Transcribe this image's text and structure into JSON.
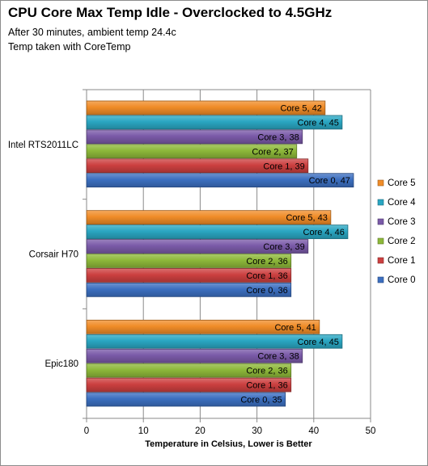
{
  "chart_data": {
    "type": "bar",
    "orientation": "horizontal",
    "title": "CPU Core Max Temp Idle - Overclocked to 4.5GHz",
    "subtitle": [
      "After 30 minutes, ambient temp 24.4c",
      "Temp taken with CoreTemp"
    ],
    "xlabel": "Temperature in Celsius,  Lower is Better",
    "ylabel": "",
    "xlim": [
      0,
      50
    ],
    "xticks": [
      0,
      10,
      20,
      30,
      40,
      50
    ],
    "grid": true,
    "legend_position": "right",
    "categories": [
      "Intel RTS2011LC",
      "Corsair H70",
      "Epic180"
    ],
    "series": [
      {
        "name": "Core 5",
        "color": "#f08c28",
        "values": [
          42,
          43,
          41
        ]
      },
      {
        "name": "Core 4",
        "color": "#2aa6c2",
        "values": [
          45,
          46,
          45
        ]
      },
      {
        "name": "Core 3",
        "color": "#7a5aa8",
        "values": [
          38,
          39,
          38
        ]
      },
      {
        "name": "Core 2",
        "color": "#8db83a",
        "values": [
          37,
          36,
          36
        ]
      },
      {
        "name": "Core 1",
        "color": "#cc4040",
        "values": [
          39,
          36,
          36
        ]
      },
      {
        "name": "Core 0",
        "color": "#3c6fc0",
        "values": [
          47,
          36,
          35
        ]
      }
    ]
  }
}
